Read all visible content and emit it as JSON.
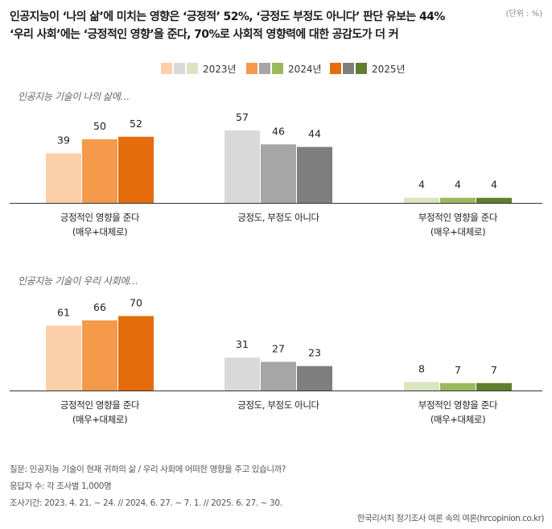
{
  "header": {
    "title_line1": "인공지능이 ‘나의 삶’에 미치는 영향은 ‘긍정적’ 52%, ‘긍정도 부정도 아니다’ 판단 유보는 44%",
    "title_line2": "‘우리 사회’에는 ‘긍정적인 영향’을 준다, 70%로 사회적 영향력에 대한 공감도가 더 커",
    "unit": "(단위 : %)"
  },
  "legend": [
    {
      "label": "2023년",
      "colors": [
        "#fbcfa9",
        "#d9d9d9",
        "#d9e4c1"
      ]
    },
    {
      "label": "2024년",
      "colors": [
        "#f5994a",
        "#a6a6a6",
        "#9bb95a"
      ]
    },
    {
      "label": "2025년",
      "colors": [
        "#e46c0a",
        "#7f7f7f",
        "#5f7f2e"
      ]
    }
  ],
  "chart_data": [
    {
      "type": "bar",
      "subtitle": "인공지능 기술이 나의 삶에…",
      "categories": [
        {
          "label": [
            "긍정적인 영향을 준다",
            "(매우+대체로)"
          ],
          "colors": [
            "#fbcfa9",
            "#f5994a",
            "#e46c0a"
          ]
        },
        {
          "label": [
            "긍정도, 부정도 아니다"
          ],
          "colors": [
            "#d9d9d9",
            "#a6a6a6",
            "#7f7f7f"
          ]
        },
        {
          "label": [
            "부정적인 영향을 준다",
            "(매우+대체로)"
          ],
          "colors": [
            "#d9e4c1",
            "#9bb95a",
            "#5f7f2e"
          ]
        }
      ],
      "series": [
        {
          "name": "2023년",
          "values": [
            39,
            57,
            4
          ]
        },
        {
          "name": "2024년",
          "values": [
            50,
            46,
            4
          ]
        },
        {
          "name": "2025년",
          "values": [
            52,
            44,
            4
          ]
        }
      ],
      "ylim": [
        0,
        100
      ]
    },
    {
      "type": "bar",
      "subtitle": "인공지능 기술이 우리 사회에…",
      "categories": [
        {
          "label": [
            "긍정적인 영향을 준다",
            "(매우+대체로)"
          ],
          "colors": [
            "#fbcfa9",
            "#f5994a",
            "#e46c0a"
          ]
        },
        {
          "label": [
            "긍정도, 부정도 아니다"
          ],
          "colors": [
            "#d9d9d9",
            "#a6a6a6",
            "#7f7f7f"
          ]
        },
        {
          "label": [
            "부정적인 영향을 준다",
            "(매우+대체로)"
          ],
          "colors": [
            "#d9e4c1",
            "#9bb95a",
            "#5f7f2e"
          ]
        }
      ],
      "series": [
        {
          "name": "2023년",
          "values": [
            61,
            31,
            8
          ]
        },
        {
          "name": "2024년",
          "values": [
            66,
            27,
            7
          ]
        },
        {
          "name": "2025년",
          "values": [
            70,
            23,
            7
          ]
        }
      ],
      "ylim": [
        0,
        100
      ]
    }
  ],
  "footer": {
    "question": "질문: 인공지능 기술이 현재 귀하의 삶 / 우리 사회에 어떠한 영향을 주고 있습니까?",
    "respondents": "응답자 수: 각 조사별 1,000명",
    "period": "조사기간: 2023. 4. 21. ~ 24. // 2024. 6. 27. ~ 7. 1. // 2025. 6. 27. ~  30.",
    "source": "한국리서치 정기조사 여론 속의 여론(hrcopinion.co.kr)"
  }
}
